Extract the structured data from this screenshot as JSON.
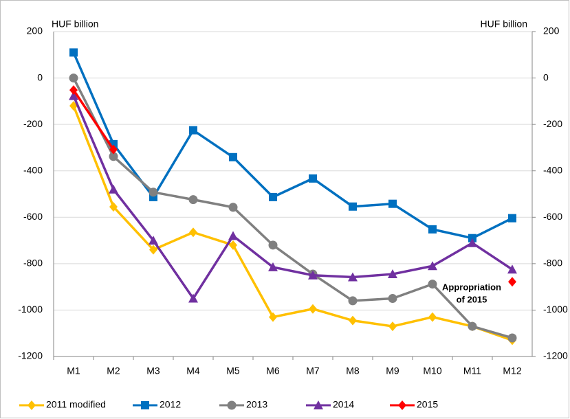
{
  "chart_data": {
    "type": "line",
    "y_label": "HUF billion",
    "y2_label": "HUF billion",
    "annotation": [
      "Appropriation",
      "of 2015"
    ],
    "categories": [
      "M1",
      "M2",
      "M3",
      "M4",
      "M5",
      "M6",
      "M7",
      "M8",
      "M9",
      "M10",
      "M11",
      "M12"
    ],
    "ylim": [
      -1200,
      200
    ],
    "yticks": [
      200,
      0,
      -200,
      -400,
      -600,
      -800,
      -1000,
      -1200
    ],
    "y2lim": [
      -1200,
      200
    ],
    "y2ticks": [
      200,
      0,
      -200,
      -400,
      -600,
      -800,
      -1000,
      -1200
    ],
    "grid": true,
    "legend": "bottom",
    "series": [
      {
        "name": "2011 modified",
        "color": "#ffc000",
        "marker": "diamond",
        "values": [
          -120,
          -555,
          -740,
          -665,
          -720,
          -1030,
          -995,
          -1045,
          -1070,
          -1030,
          -1070,
          -1130
        ]
      },
      {
        "name": "2012",
        "color": "#0070c0",
        "marker": "square",
        "values": [
          110,
          -285,
          -513,
          -225,
          -341,
          -513,
          -433,
          -554,
          -542,
          -652,
          -690,
          -604
        ]
      },
      {
        "name": "2013",
        "color": "#808080",
        "marker": "circle",
        "values": [
          0,
          -338,
          -492,
          -524,
          -557,
          -720,
          -845,
          -960,
          -950,
          -888,
          -1070,
          -1120
        ]
      },
      {
        "name": "2014",
        "color": "#7030a0",
        "marker": "triangle",
        "values": [
          -77,
          -480,
          -700,
          -950,
          -680,
          -815,
          -850,
          -858,
          -845,
          -810,
          -711,
          -825
        ]
      },
      {
        "name": "2015",
        "color": "#ff0000",
        "marker": "diamond",
        "values": [
          -52,
          -308,
          null,
          null,
          null,
          null,
          null,
          null,
          null,
          null,
          null,
          -878
        ]
      }
    ]
  }
}
